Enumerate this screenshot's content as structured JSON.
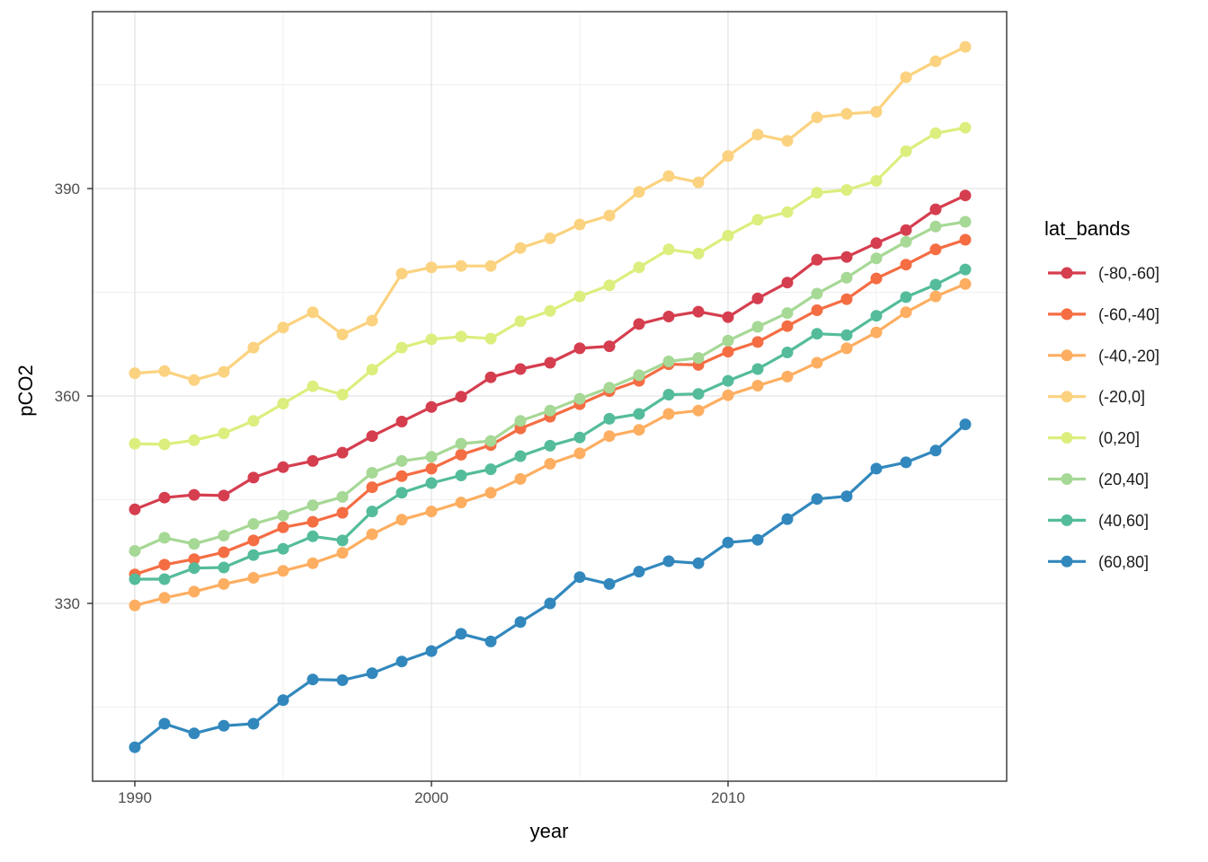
{
  "chart_data": {
    "type": "line",
    "title": "",
    "xlabel": "year",
    "ylabel": "pCO2",
    "legend_title": "lat_bands",
    "legend_position": "right",
    "grid": true,
    "xlim": [
      1988.6,
      2019.4
    ],
    "ylim": [
      304.3,
      415.6
    ],
    "x_major_ticks": [
      1990,
      2000,
      2010
    ],
    "x_minor_gridlines": [
      1995,
      2005,
      2015
    ],
    "y_major_ticks": [
      330,
      360,
      390
    ],
    "y_minor_gridlines": [
      315,
      345,
      375,
      405
    ],
    "x": [
      1990,
      1991,
      1992,
      1993,
      1994,
      1995,
      1996,
      1997,
      1998,
      1999,
      2000,
      2001,
      2002,
      2003,
      2004,
      2005,
      2006,
      2007,
      2008,
      2009,
      2010,
      2011,
      2012,
      2013,
      2014,
      2015,
      2016,
      2017,
      2018
    ],
    "series": [
      {
        "name": "(-80,-60]",
        "color": "#d53e4f",
        "values": [
          343.6,
          345.3,
          345.7,
          345.6,
          348.2,
          349.7,
          350.6,
          351.8,
          354.2,
          356.3,
          358.4,
          359.9,
          362.7,
          363.9,
          364.8,
          366.9,
          367.2,
          370.4,
          371.5,
          372.2,
          371.4,
          374.1,
          376.4,
          379.7,
          380.1,
          382.1,
          384.0,
          387.0,
          389.0
        ]
      },
      {
        "name": "(-60,-40]",
        "color": "#f46d43",
        "values": [
          334.2,
          335.6,
          336.4,
          337.4,
          339.1,
          341.0,
          341.8,
          343.1,
          346.8,
          348.4,
          349.5,
          351.5,
          352.9,
          355.3,
          357.0,
          358.8,
          360.7,
          362.2,
          364.6,
          364.5,
          366.4,
          367.8,
          370.1,
          372.4,
          374.0,
          377.0,
          379.0,
          381.2,
          382.6
        ]
      },
      {
        "name": "(-40,-20]",
        "color": "#fdae61",
        "values": [
          329.7,
          330.8,
          331.7,
          332.8,
          333.7,
          334.7,
          335.8,
          337.3,
          340.0,
          342.1,
          343.3,
          344.6,
          346.0,
          348.0,
          350.2,
          351.7,
          354.2,
          355.1,
          357.4,
          357.9,
          360.1,
          361.5,
          362.8,
          364.8,
          366.9,
          369.2,
          372.1,
          374.4,
          376.2
        ]
      },
      {
        "name": "(-20,0]",
        "color": "#fbd27f",
        "values": [
          363.3,
          363.6,
          362.3,
          363.5,
          367.0,
          369.9,
          372.1,
          368.9,
          370.9,
          377.7,
          378.6,
          378.8,
          378.8,
          381.4,
          382.8,
          384.8,
          386.1,
          389.5,
          391.8,
          390.9,
          394.7,
          397.8,
          396.9,
          400.3,
          400.8,
          401.1,
          406.1,
          408.4,
          410.5
        ]
      },
      {
        "name": "(0,20]",
        "color": "#dcee7d",
        "values": [
          353.1,
          353.0,
          353.6,
          354.6,
          356.4,
          358.9,
          361.4,
          360.2,
          363.8,
          367.0,
          368.2,
          368.6,
          368.3,
          370.8,
          372.3,
          374.4,
          376.0,
          378.6,
          381.2,
          380.6,
          383.2,
          385.5,
          386.6,
          389.4,
          389.8,
          391.1,
          395.4,
          398.0,
          398.8
        ]
      },
      {
        "name": "(20,40]",
        "color": "#a6d896",
        "values": [
          337.6,
          339.5,
          338.6,
          339.8,
          341.5,
          342.7,
          344.2,
          345.4,
          348.9,
          350.6,
          351.2,
          353.1,
          353.5,
          356.4,
          357.9,
          359.6,
          361.2,
          363.0,
          365.0,
          365.5,
          368.0,
          370.0,
          372.0,
          374.8,
          377.1,
          379.9,
          382.3,
          384.5,
          385.2
        ]
      },
      {
        "name": "(40,60]",
        "color": "#54bc9b",
        "values": [
          333.5,
          333.5,
          335.1,
          335.2,
          337.0,
          337.9,
          339.7,
          339.1,
          343.3,
          346.0,
          347.4,
          348.5,
          349.4,
          351.3,
          352.8,
          354.0,
          356.7,
          357.4,
          360.2,
          360.3,
          362.2,
          363.9,
          366.3,
          369.0,
          368.8,
          371.6,
          374.3,
          376.1,
          378.3
        ]
      },
      {
        "name": "(60,80]",
        "color": "#3288bd",
        "values": [
          309.2,
          312.6,
          311.2,
          312.3,
          312.6,
          316.0,
          319.0,
          318.9,
          319.9,
          321.6,
          323.1,
          325.6,
          324.5,
          327.3,
          330.0,
          333.8,
          332.8,
          334.6,
          336.1,
          335.8,
          338.8,
          339.2,
          342.2,
          345.1,
          345.5,
          349.5,
          350.4,
          352.1,
          355.9
        ]
      }
    ]
  },
  "style": {
    "panel_border": "#333333",
    "grid_major": "#e3e3e3",
    "grid_minor": "#efefef",
    "tick_color": "#333333",
    "background": "#ffffff"
  }
}
